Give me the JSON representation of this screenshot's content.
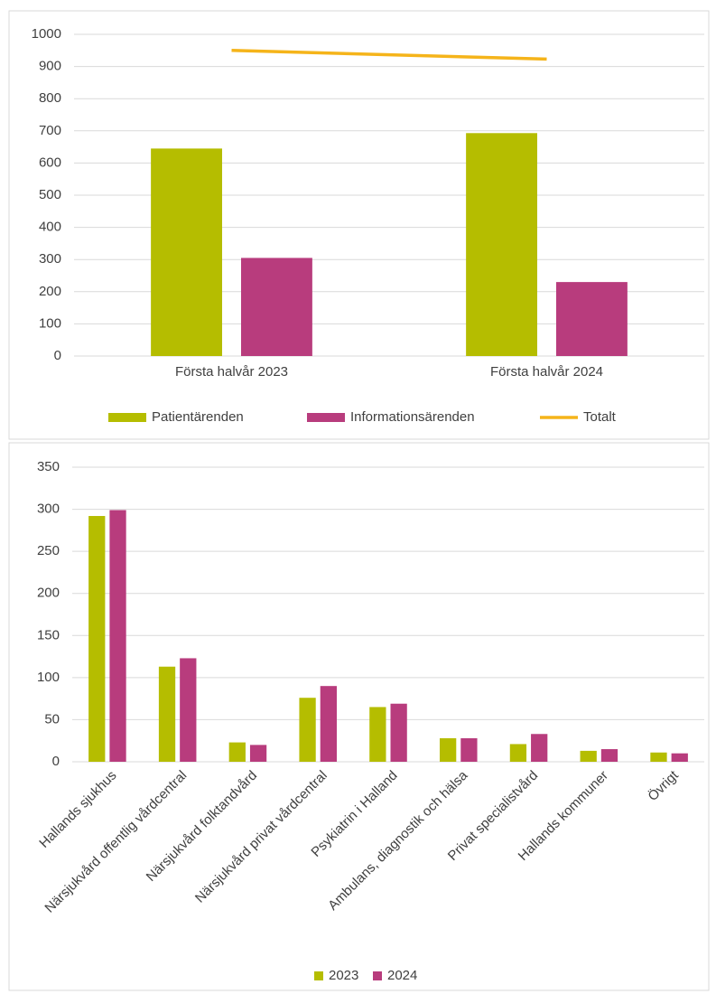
{
  "chart_data": [
    {
      "type": "bar",
      "categories": [
        "Första halvår 2023",
        "Första halvår 2024"
      ],
      "series": [
        {
          "name": "Patientärenden",
          "color": "#b5bd00",
          "values": [
            645,
            693
          ]
        },
        {
          "name": "Informationsärenden",
          "color": "#b83c7d",
          "values": [
            305,
            230
          ]
        },
        {
          "name": "Totalt",
          "color": "#f5b41a",
          "type": "line",
          "values": [
            950,
            923
          ]
        }
      ],
      "ylim": [
        0,
        1000
      ],
      "yticks": [
        0,
        100,
        200,
        300,
        400,
        500,
        600,
        700,
        800,
        900,
        1000
      ],
      "grid": true,
      "legend": "bottom"
    },
    {
      "type": "bar",
      "categories": [
        "Hallands sjukhus",
        "Närsjukvård offentlig vårdcentral",
        "Närsjukvård folktandvård",
        "Närsjukvård privat vårdcentral",
        "Psykiatrin i Halland",
        "Ambulans, diagnostik och hälsa",
        "Privat specialistvård",
        "Hallands kommuner",
        "Övrigt"
      ],
      "series": [
        {
          "name": "2023",
          "color": "#b5bd00",
          "values": [
            292,
            113,
            23,
            76,
            65,
            28,
            21,
            13,
            11
          ]
        },
        {
          "name": "2024",
          "color": "#b83c7d",
          "values": [
            299,
            123,
            20,
            90,
            69,
            28,
            33,
            15,
            10
          ]
        }
      ],
      "ylim": [
        0,
        350
      ],
      "yticks": [
        0,
        50,
        100,
        150,
        200,
        250,
        300,
        350
      ],
      "grid": true,
      "legend": "bottom"
    }
  ]
}
